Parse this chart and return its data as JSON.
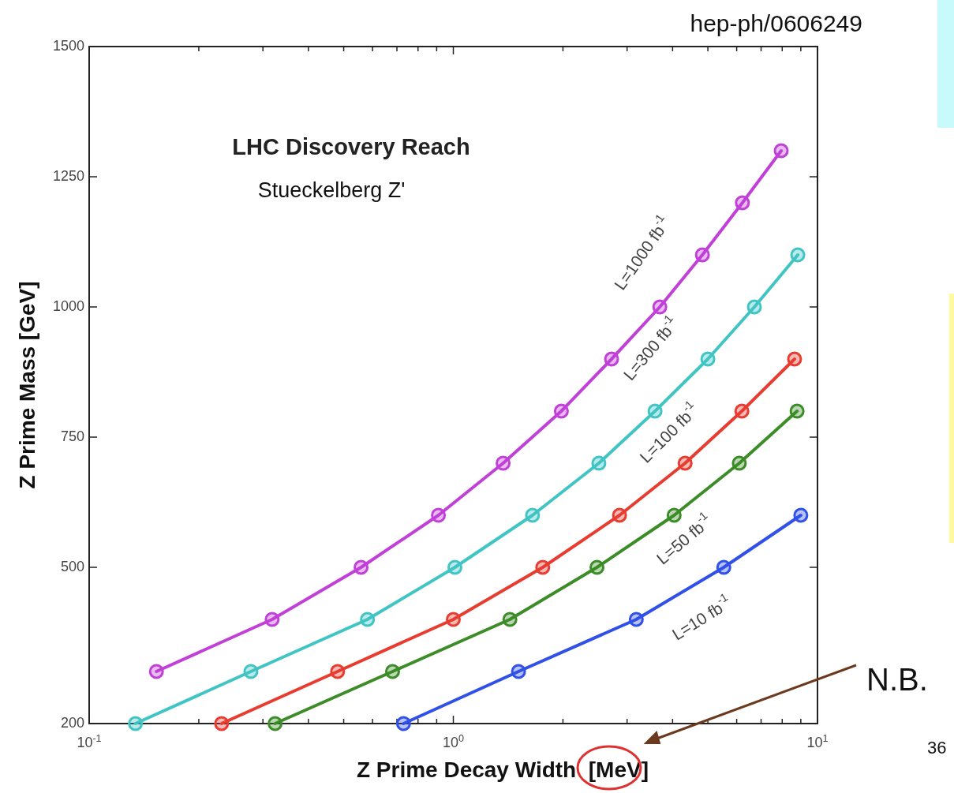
{
  "chart_data": {
    "type": "line",
    "title": "LHC Discovery Reach",
    "subtitle": "Stueckelberg Z'",
    "xlabel": "Z Prime Decay Width  [MeV]",
    "ylabel": "Z Prime Mass  [GeV]",
    "annotations": [
      "hep-ph/0606249",
      "N.B.",
      "36"
    ],
    "log": "x",
    "xlim": [
      0.1,
      10
    ],
    "ylim": [
      200,
      1500
    ],
    "xticks": [
      {
        "value": 0.1,
        "label": "10$^{-1}$"
      },
      {
        "value": 0.2,
        "label": null
      },
      {
        "value": 0.3,
        "label": null
      },
      {
        "value": 0.4,
        "label": null
      },
      {
        "value": 0.5,
        "label": null
      },
      {
        "value": 0.6,
        "label": null
      },
      {
        "value": 0.7,
        "label": null
      },
      {
        "value": 0.8,
        "label": null
      },
      {
        "value": 0.9,
        "label": null
      },
      {
        "value": 1,
        "label": "10$^{0}$"
      },
      {
        "value": 2,
        "label": null
      },
      {
        "value": 3,
        "label": null
      },
      {
        "value": 4,
        "label": null
      },
      {
        "value": 5,
        "label": null
      },
      {
        "value": 6,
        "label": null
      },
      {
        "value": 7,
        "label": null
      },
      {
        "value": 8,
        "label": null
      },
      {
        "value": 9,
        "label": null
      },
      {
        "value": 10,
        "label": "10$^{1}$"
      }
    ],
    "yticks": [
      200,
      500,
      750,
      1000,
      1250,
      1500
    ],
    "grid": false,
    "marker": "circle",
    "line_style": "solid",
    "series": [
      {
        "name": "L=1000 fb$^{-1}$",
        "color": "#c040d8",
        "x": [
          0.153,
          0.318,
          0.558,
          0.91,
          1.37,
          1.98,
          2.72,
          3.69,
          4.83,
          6.22,
          7.95
        ],
        "values": [
          300,
          400,
          500,
          600,
          700,
          800,
          900,
          1000,
          1100,
          1200,
          1300
        ]
      },
      {
        "name": "L=300 fb$^{-1}$",
        "color": "#40c4c4",
        "x": [
          0.134,
          0.278,
          0.581,
          1.01,
          1.65,
          2.51,
          3.58,
          5.0,
          6.71,
          8.83
        ],
        "values": [
          200,
          300,
          400,
          500,
          600,
          700,
          800,
          900,
          1000,
          1100
        ]
      },
      {
        "name": "L=100 fb$^{-1}$",
        "color": "#e83c30",
        "x": [
          0.231,
          0.481,
          1.0,
          1.76,
          2.86,
          4.33,
          6.2,
          8.65
        ],
        "values": [
          200,
          300,
          400,
          500,
          600,
          700,
          800,
          900
        ]
      },
      {
        "name": "L=50 fb$^{-1}$",
        "color": "#3c8c28",
        "x": [
          0.324,
          0.681,
          1.43,
          2.48,
          4.04,
          6.1,
          8.79
        ],
        "values": [
          200,
          300,
          400,
          500,
          600,
          700,
          800
        ]
      },
      {
        "name": "L=10 fb$^{-1}$",
        "color": "#3050e8",
        "x": [
          0.73,
          1.51,
          3.18,
          5.53,
          9.0
        ],
        "values": [
          200,
          300,
          400,
          500,
          600
        ]
      }
    ]
  }
}
